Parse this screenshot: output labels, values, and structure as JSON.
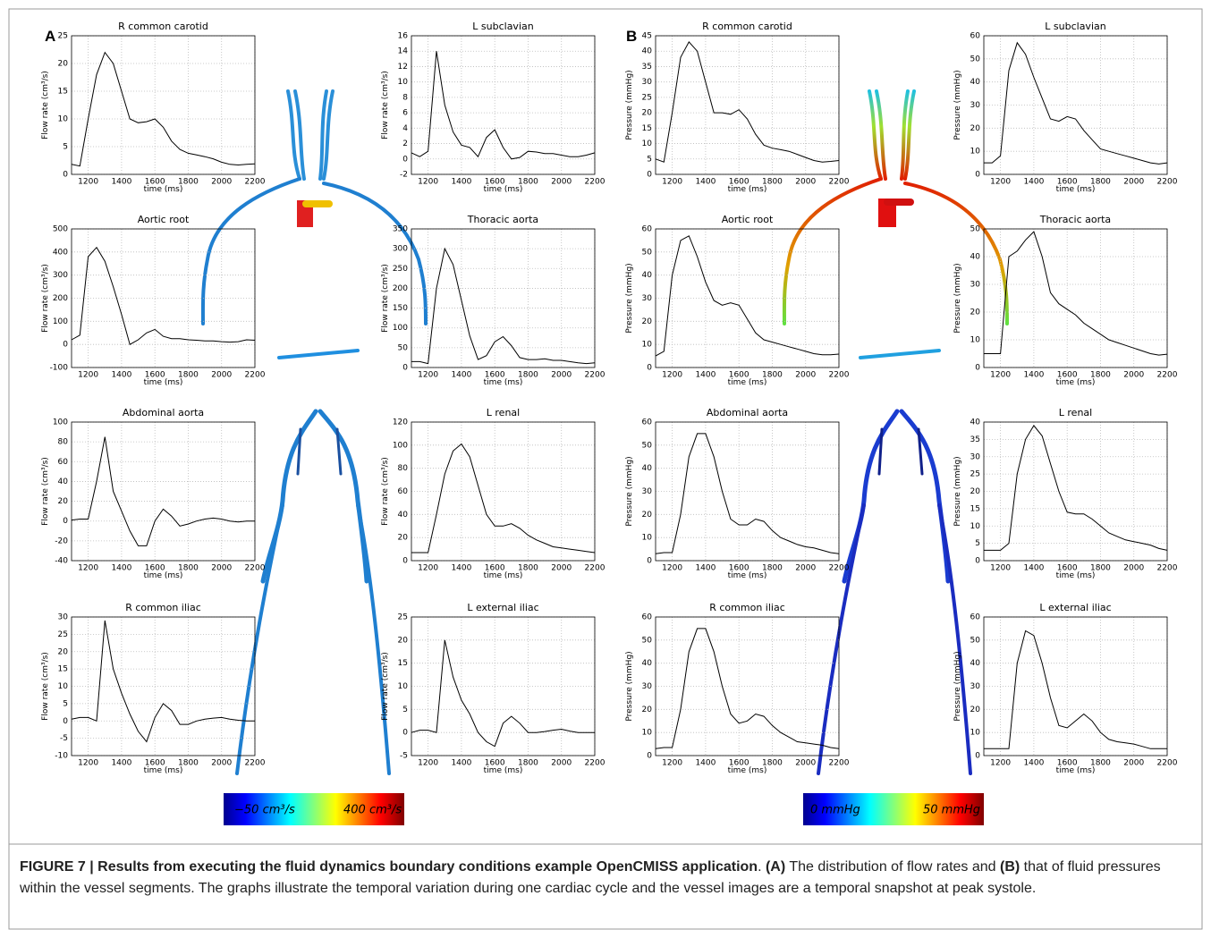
{
  "panel_labels": [
    "A",
    "B"
  ],
  "colorbars": [
    {
      "min_label": "−50 cm³/s",
      "max_label": "400 cm³/s"
    },
    {
      "min_label": "0 mmHg",
      "max_label": "50 mmHg"
    }
  ],
  "caption": [
    "FIGURE 7 | Results from executing the fluid dynamics boundary conditions example OpenCMISS application",
    ". ",
    "(A)",
    " The distribution of flow rates and ",
    "(B)",
    " that of fluid pressures within the vessel segments. The graphs illustrate the temporal variation during one cardiac cycle and the vessel images are a temporal snapshot at peak systole."
  ],
  "chart_data": [
    {
      "type": "line",
      "title": "R common carotid",
      "xlabel": "time (ms)",
      "ylabel": "Flow rate (cm³/s)",
      "color": "#000000",
      "grid": true,
      "xlim": [
        1100,
        2200
      ],
      "xticks": [
        1200,
        1400,
        1600,
        1800,
        2000,
        2200
      ],
      "ylim": [
        0,
        25
      ],
      "yticks": [
        0,
        5,
        10,
        15,
        20,
        25
      ],
      "x": [
        1100,
        1150,
        1200,
        1250,
        1300,
        1350,
        1400,
        1450,
        1500,
        1550,
        1600,
        1650,
        1700,
        1750,
        1800,
        1850,
        1900,
        1950,
        2000,
        2050,
        2100,
        2150,
        2200
      ],
      "values": [
        1.8,
        1.5,
        10,
        18,
        22,
        20,
        15,
        10,
        9.3,
        9.5,
        10,
        8.5,
        6,
        4.5,
        3.8,
        3.5,
        3.2,
        2.8,
        2.2,
        1.8,
        1.7,
        1.8,
        1.9
      ]
    },
    {
      "type": "line",
      "title": "L subclavian",
      "xlabel": "time (ms)",
      "ylabel": "Flow rate (cm³/s)",
      "color": "#000000",
      "grid": true,
      "xlim": [
        1100,
        2200
      ],
      "xticks": [
        1200,
        1400,
        1600,
        1800,
        2000,
        2200
      ],
      "ylim": [
        -2,
        16
      ],
      "yticks": [
        -2,
        0,
        2,
        4,
        6,
        8,
        10,
        12,
        14,
        16
      ],
      "x": [
        1100,
        1150,
        1200,
        1250,
        1300,
        1350,
        1400,
        1450,
        1500,
        1550,
        1600,
        1650,
        1700,
        1750,
        1800,
        1850,
        1900,
        1950,
        2000,
        2050,
        2100,
        2150,
        2200
      ],
      "values": [
        0.8,
        0.3,
        1,
        14,
        7,
        3.5,
        1.8,
        1.5,
        0.3,
        2.8,
        3.8,
        1.5,
        0,
        0.2,
        1,
        0.9,
        0.7,
        0.7,
        0.5,
        0.3,
        0.3,
        0.5,
        0.8
      ]
    },
    {
      "type": "line",
      "title": "Aortic root",
      "xlabel": "time (ms)",
      "ylabel": "Flow rate (cm³/s)",
      "color": "#000000",
      "grid": true,
      "xlim": [
        1100,
        2200
      ],
      "xticks": [
        1200,
        1400,
        1600,
        1800,
        2000,
        2200
      ],
      "ylim": [
        -100,
        500
      ],
      "yticks": [
        -100,
        0,
        100,
        200,
        300,
        400,
        500
      ],
      "x": [
        1100,
        1150,
        1200,
        1250,
        1300,
        1350,
        1400,
        1450,
        1500,
        1550,
        1600,
        1650,
        1700,
        1750,
        1800,
        1850,
        1900,
        1950,
        2000,
        2050,
        2100,
        2150,
        2200
      ],
      "values": [
        20,
        40,
        380,
        420,
        360,
        250,
        130,
        0,
        20,
        50,
        65,
        35,
        25,
        25,
        20,
        18,
        15,
        15,
        12,
        10,
        12,
        20,
        18
      ]
    },
    {
      "type": "line",
      "title": "Thoracic aorta",
      "xlabel": "time (ms)",
      "ylabel": "Flow rate (cm³/s)",
      "color": "#000000",
      "grid": true,
      "xlim": [
        1100,
        2200
      ],
      "xticks": [
        1200,
        1400,
        1600,
        1800,
        2000,
        2200
      ],
      "ylim": [
        0,
        350
      ],
      "yticks": [
        0,
        50,
        100,
        150,
        200,
        250,
        300,
        350
      ],
      "x": [
        1100,
        1150,
        1200,
        1250,
        1300,
        1350,
        1400,
        1450,
        1500,
        1550,
        1600,
        1650,
        1700,
        1750,
        1800,
        1850,
        1900,
        1950,
        2000,
        2050,
        2100,
        2150,
        2200
      ],
      "values": [
        15,
        15,
        10,
        200,
        300,
        260,
        170,
        80,
        20,
        30,
        65,
        78,
        55,
        25,
        20,
        20,
        22,
        18,
        18,
        15,
        12,
        10,
        12
      ]
    },
    {
      "type": "line",
      "title": "Abdominal aorta",
      "xlabel": "time (ms)",
      "ylabel": "Flow rate (cm³/s)",
      "color": "#000000",
      "grid": true,
      "xlim": [
        1100,
        2200
      ],
      "xticks": [
        1200,
        1400,
        1600,
        1800,
        2000,
        2200
      ],
      "ylim": [
        -40,
        100
      ],
      "yticks": [
        -40,
        -20,
        0,
        20,
        40,
        60,
        80,
        100
      ],
      "x": [
        1100,
        1150,
        1200,
        1250,
        1300,
        1350,
        1400,
        1450,
        1500,
        1550,
        1600,
        1650,
        1700,
        1750,
        1800,
        1850,
        1900,
        1950,
        2000,
        2050,
        2100,
        2150,
        2200
      ],
      "values": [
        1,
        2,
        2,
        40,
        85,
        30,
        10,
        -10,
        -25,
        -25,
        0,
        12,
        5,
        -5,
        -3,
        0,
        2,
        3,
        2,
        0,
        -1,
        0,
        0
      ]
    },
    {
      "type": "line",
      "title": "L renal",
      "xlabel": "time (ms)",
      "ylabel": "Flow rate (cm³/s)",
      "color": "#000000",
      "grid": true,
      "xlim": [
        1100,
        2200
      ],
      "xticks": [
        1200,
        1400,
        1600,
        1800,
        2000,
        2200
      ],
      "ylim": [
        0,
        120
      ],
      "yticks": [
        0,
        20,
        40,
        60,
        80,
        100,
        120
      ],
      "x": [
        1100,
        1150,
        1200,
        1250,
        1300,
        1350,
        1400,
        1450,
        1500,
        1550,
        1600,
        1650,
        1700,
        1750,
        1800,
        1850,
        1900,
        1950,
        2000,
        2050,
        2100,
        2150,
        2200
      ],
      "values": [
        7,
        7,
        7,
        40,
        75,
        95,
        101,
        90,
        65,
        40,
        30,
        30,
        32,
        28,
        22,
        18,
        15,
        12,
        11,
        10,
        9,
        8,
        7
      ]
    },
    {
      "type": "line",
      "title": "R common iliac",
      "xlabel": "time (ms)",
      "ylabel": "Flow rate (cm³/s)",
      "color": "#000000",
      "grid": true,
      "xlim": [
        1100,
        2200
      ],
      "xticks": [
        1200,
        1400,
        1600,
        1800,
        2000,
        2200
      ],
      "ylim": [
        -10,
        30
      ],
      "yticks": [
        -10,
        -5,
        0,
        5,
        10,
        15,
        20,
        25,
        30
      ],
      "x": [
        1100,
        1150,
        1200,
        1250,
        1300,
        1350,
        1400,
        1450,
        1500,
        1550,
        1600,
        1650,
        1700,
        1750,
        1800,
        1850,
        1900,
        1950,
        2000,
        2050,
        2100,
        2150,
        2200
      ],
      "values": [
        0.5,
        1,
        1,
        0,
        29,
        15,
        8,
        2,
        -3,
        -6,
        1,
        5,
        3,
        -1,
        -1,
        0,
        0.5,
        0.8,
        1,
        0.5,
        0.2,
        0,
        0
      ]
    },
    {
      "type": "line",
      "title": "L external iliac",
      "xlabel": "time (ms)",
      "ylabel": "Flow rate (cm³/s)",
      "color": "#000000",
      "grid": true,
      "xlim": [
        1100,
        2200
      ],
      "xticks": [
        1200,
        1400,
        1600,
        1800,
        2000,
        2200
      ],
      "ylim": [
        -5,
        25
      ],
      "yticks": [
        -5,
        0,
        5,
        10,
        15,
        20,
        25
      ],
      "x": [
        1100,
        1150,
        1200,
        1250,
        1300,
        1350,
        1400,
        1450,
        1500,
        1550,
        1600,
        1650,
        1700,
        1750,
        1800,
        1850,
        1900,
        1950,
        2000,
        2050,
        2100,
        2150,
        2200
      ],
      "values": [
        0,
        0.5,
        0.5,
        0,
        20,
        12,
        7,
        4,
        0,
        -2,
        -3,
        2,
        3.5,
        2,
        0,
        0,
        0.2,
        0.5,
        0.7,
        0.3,
        0,
        0,
        0
      ]
    },
    {
      "type": "line",
      "title": "R common carotid",
      "xlabel": "time (ms)",
      "ylabel": "Pressure (mmHg)",
      "color": "#000000",
      "grid": true,
      "xlim": [
        1100,
        2200
      ],
      "xticks": [
        1200,
        1400,
        1600,
        1800,
        2000,
        2200
      ],
      "ylim": [
        0,
        45
      ],
      "yticks": [
        0,
        5,
        10,
        15,
        20,
        25,
        30,
        35,
        40,
        45
      ],
      "x": [
        1100,
        1150,
        1200,
        1250,
        1300,
        1350,
        1400,
        1450,
        1500,
        1550,
        1600,
        1650,
        1700,
        1750,
        1800,
        1850,
        1900,
        1950,
        2000,
        2050,
        2100,
        2150,
        2200
      ],
      "values": [
        5,
        4,
        20,
        38,
        43,
        40,
        30,
        20,
        20,
        19.5,
        21,
        18,
        13,
        9.5,
        8.5,
        8,
        7.5,
        6.5,
        5.5,
        4.5,
        4,
        4.2,
        4.5
      ]
    },
    {
      "type": "line",
      "title": "L subclavian",
      "xlabel": "time (ms)",
      "ylabel": "Pressure (mmHg)",
      "color": "#000000",
      "grid": true,
      "xlim": [
        1100,
        2200
      ],
      "xticks": [
        1200,
        1400,
        1600,
        1800,
        2000,
        2200
      ],
      "ylim": [
        0,
        60
      ],
      "yticks": [
        0,
        10,
        20,
        30,
        40,
        50,
        60
      ],
      "x": [
        1100,
        1150,
        1200,
        1250,
        1300,
        1350,
        1400,
        1450,
        1500,
        1550,
        1600,
        1650,
        1700,
        1750,
        1800,
        1850,
        1900,
        1950,
        2000,
        2050,
        2100,
        2150,
        2200
      ],
      "values": [
        5,
        5,
        8,
        45,
        57,
        52,
        42,
        33,
        24,
        23,
        25,
        24,
        19,
        15,
        11,
        10,
        9,
        8,
        7,
        6,
        5,
        4.5,
        5
      ]
    },
    {
      "type": "line",
      "title": "Aortic root",
      "xlabel": "time (ms)",
      "ylabel": "Pressure (mmHg)",
      "color": "#000000",
      "grid": true,
      "xlim": [
        1100,
        2200
      ],
      "xticks": [
        1200,
        1400,
        1600,
        1800,
        2000,
        2200
      ],
      "ylim": [
        0,
        60
      ],
      "yticks": [
        0,
        10,
        20,
        30,
        40,
        50,
        60
      ],
      "x": [
        1100,
        1150,
        1200,
        1250,
        1300,
        1350,
        1400,
        1450,
        1500,
        1550,
        1600,
        1650,
        1700,
        1750,
        1800,
        1850,
        1900,
        1950,
        2000,
        2050,
        2100,
        2150,
        2200
      ],
      "values": [
        5,
        7,
        40,
        55,
        57,
        48,
        37,
        29,
        27,
        28,
        27,
        21,
        15,
        12,
        11,
        10,
        9,
        8,
        7,
        6,
        5.5,
        5.5,
        5.8
      ]
    },
    {
      "type": "line",
      "title": "Thoracic aorta",
      "xlabel": "time (ms)",
      "ylabel": "Pressure (mmHg)",
      "color": "#000000",
      "grid": true,
      "xlim": [
        1100,
        2200
      ],
      "xticks": [
        1200,
        1400,
        1600,
        1800,
        2000,
        2200
      ],
      "ylim": [
        0,
        50
      ],
      "yticks": [
        0,
        10,
        20,
        30,
        40,
        50
      ],
      "x": [
        1100,
        1150,
        1200,
        1250,
        1300,
        1350,
        1400,
        1450,
        1500,
        1550,
        1600,
        1650,
        1700,
        1750,
        1800,
        1850,
        1900,
        1950,
        2000,
        2050,
        2100,
        2150,
        2200
      ],
      "values": [
        5,
        5,
        5,
        40,
        42,
        46,
        49,
        40,
        27,
        23,
        21,
        19,
        16,
        14,
        12,
        10,
        9,
        8,
        7,
        6,
        5,
        4.5,
        4.8
      ]
    },
    {
      "type": "line",
      "title": "Abdominal aorta",
      "xlabel": "time (ms)",
      "ylabel": "Pressure (mmHg)",
      "color": "#000000",
      "grid": true,
      "xlim": [
        1100,
        2200
      ],
      "xticks": [
        1200,
        1400,
        1600,
        1800,
        2000,
        2200
      ],
      "ylim": [
        0,
        60
      ],
      "yticks": [
        0,
        10,
        20,
        30,
        40,
        50,
        60
      ],
      "x": [
        1100,
        1150,
        1200,
        1250,
        1300,
        1350,
        1400,
        1450,
        1500,
        1550,
        1600,
        1650,
        1700,
        1750,
        1800,
        1850,
        1900,
        1950,
        2000,
        2050,
        2100,
        2150,
        2200
      ],
      "values": [
        3,
        3.5,
        3.5,
        20,
        45,
        55,
        55,
        45,
        30,
        18,
        15.5,
        15.5,
        18,
        17,
        13,
        10,
        8.5,
        7,
        6,
        5.5,
        4.5,
        3.5,
        3
      ]
    },
    {
      "type": "line",
      "title": "L renal",
      "xlabel": "time (ms)",
      "ylabel": "Pressure (mmHg)",
      "color": "#000000",
      "grid": true,
      "xlim": [
        1100,
        2200
      ],
      "xticks": [
        1200,
        1400,
        1600,
        1800,
        2000,
        2200
      ],
      "ylim": [
        0,
        40
      ],
      "yticks": [
        0,
        5,
        10,
        15,
        20,
        25,
        30,
        35,
        40
      ],
      "x": [
        1100,
        1150,
        1200,
        1250,
        1300,
        1350,
        1400,
        1450,
        1500,
        1550,
        1600,
        1650,
        1700,
        1750,
        1800,
        1850,
        1900,
        1950,
        2000,
        2050,
        2100,
        2150,
        2200
      ],
      "values": [
        3,
        3,
        3,
        5,
        25,
        35,
        39,
        36,
        28,
        20,
        14,
        13.5,
        13.5,
        12,
        10,
        8,
        7,
        6,
        5.5,
        5,
        4.5,
        3.5,
        3
      ]
    },
    {
      "type": "line",
      "title": "R common iliac",
      "xlabel": "time (ms)",
      "ylabel": "Pressure (mmHg)",
      "color": "#000000",
      "grid": true,
      "xlim": [
        1100,
        2200
      ],
      "xticks": [
        1200,
        1400,
        1600,
        1800,
        2000,
        2200
      ],
      "ylim": [
        0,
        60
      ],
      "yticks": [
        0,
        10,
        20,
        30,
        40,
        50,
        60
      ],
      "x": [
        1100,
        1150,
        1200,
        1250,
        1300,
        1350,
        1400,
        1450,
        1500,
        1550,
        1600,
        1650,
        1700,
        1750,
        1800,
        1850,
        1900,
        1950,
        2000,
        2050,
        2100,
        2150,
        2200
      ],
      "values": [
        3,
        3.5,
        3.5,
        20,
        45,
        55,
        55,
        45,
        30,
        18,
        14,
        15,
        18,
        17,
        13,
        10,
        8,
        6,
        5.5,
        5,
        4.5,
        3.5,
        3
      ]
    },
    {
      "type": "line",
      "title": "L external iliac",
      "xlabel": "time (ms)",
      "ylabel": "Pressure (mmHg)",
      "color": "#000000",
      "grid": true,
      "xlim": [
        1100,
        2200
      ],
      "xticks": [
        1200,
        1400,
        1600,
        1800,
        2000,
        2200
      ],
      "ylim": [
        0,
        60
      ],
      "yticks": [
        0,
        10,
        20,
        30,
        40,
        50,
        60
      ],
      "x": [
        1100,
        1150,
        1200,
        1250,
        1300,
        1350,
        1400,
        1450,
        1500,
        1550,
        1600,
        1650,
        1700,
        1750,
        1800,
        1850,
        1900,
        1950,
        2000,
        2050,
        2100,
        2150,
        2200
      ],
      "values": [
        3,
        3,
        3,
        3,
        40,
        54,
        52,
        40,
        25,
        13,
        12,
        15,
        18,
        15,
        10,
        7,
        6,
        5.5,
        5,
        4,
        3,
        3,
        3
      ]
    }
  ]
}
